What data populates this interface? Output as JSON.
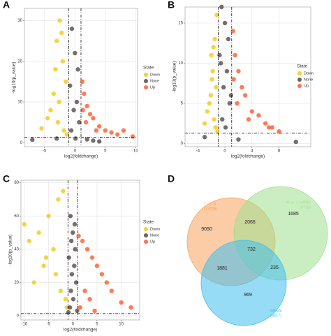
{
  "chart_data": [
    {
      "type": "scatter",
      "panel": "A",
      "xlabel": "log2(foldchange)",
      "ylabel": "-log10(p_value)",
      "legend_title": "State",
      "grid": true,
      "thresholds": {
        "x": [
          -1,
          1
        ],
        "y": 1.3
      },
      "xlim": [
        -8.3,
        10.3
      ],
      "ylim": [
        -1,
        33
      ],
      "xticks": [
        -5,
        0,
        5,
        10
      ],
      "yticks": [
        0,
        10,
        20,
        30
      ],
      "series": [
        {
          "name": "Down",
          "color": "#f5c400",
          "x": [
            -2.5,
            -3,
            -2,
            -1.5,
            -3.5,
            -4,
            -2.8,
            -1.8,
            -2.2,
            -3.2,
            -4.5,
            -1.3,
            -2.6,
            -5.5
          ],
          "y": [
            30,
            25,
            20,
            15,
            12,
            8,
            5,
            3,
            27,
            18,
            6,
            2,
            10,
            3.5
          ]
        },
        {
          "name": "None",
          "color": "#4a3d3d",
          "x": [
            -0.5,
            0,
            0.5,
            -0.8,
            0.3,
            -0.2,
            0.7,
            -0.6,
            0.1,
            2,
            3,
            -3,
            4,
            -7
          ],
          "y": [
            28,
            22,
            18,
            14,
            10,
            8,
            5,
            3,
            1,
            0.8,
            0.5,
            1,
            0.3,
            0.7
          ]
        },
        {
          "name": "Up",
          "color": "#ff4f1f",
          "x": [
            1.2,
            1.5,
            2,
            2.5,
            3,
            4,
            5,
            6,
            7,
            8,
            9.5,
            1.8,
            3.5,
            1.3
          ],
          "y": [
            15,
            12,
            9,
            7,
            6,
            4,
            3,
            2.5,
            2,
            3,
            1.5,
            5,
            3,
            8
          ]
        }
      ]
    },
    {
      "type": "scatter",
      "panel": "B",
      "xlabel": "log2(foldchange)",
      "ylabel": "-log10(p_value)",
      "legend_title": "State",
      "grid": true,
      "thresholds": {
        "x": [
          -1,
          1
        ],
        "y": 1.3
      },
      "xlim": [
        -5.9,
        12.7
      ],
      "ylim": [
        -0.4,
        17
      ],
      "xticks": [
        -4,
        0,
        4,
        8
      ],
      "yticks": [
        0,
        5,
        10,
        15
      ],
      "series": [
        {
          "name": "Down",
          "color": "#f5c400",
          "x": [
            -1.2,
            -1.5,
            -2,
            -1.8,
            -1.3,
            -2.3,
            -1.6,
            -1.4,
            -2.6,
            -1.9,
            -1.1,
            -2.1,
            -1.7,
            -3
          ],
          "y": [
            16,
            13,
            11,
            9,
            7,
            5,
            3,
            2,
            4,
            8,
            1.5,
            6,
            12,
            2.5
          ]
        },
        {
          "name": "None",
          "color": "#4a3d3d",
          "x": [
            -0.5,
            0,
            0.5,
            -0.8,
            0.3,
            -0.2,
            0.7,
            -0.4,
            0.1,
            -0.6,
            0.9,
            2,
            -3,
            10.5
          ],
          "y": [
            17,
            15,
            13,
            11,
            9,
            7,
            5,
            3,
            2,
            10,
            6,
            0.5,
            0.8,
            0.2
          ]
        },
        {
          "name": "Up",
          "color": "#ff4f1f",
          "x": [
            1.2,
            1.5,
            2,
            2.5,
            3,
            4,
            5,
            6,
            7,
            1.8,
            3.5,
            1.3,
            8,
            6.5
          ],
          "y": [
            14,
            11,
            9,
            7,
            6,
            4,
            3.5,
            2.5,
            2,
            5,
            3,
            8,
            1.5,
            2
          ]
        }
      ]
    },
    {
      "type": "scatter",
      "panel": "C",
      "xlabel": "log2(foldchange)",
      "ylabel": "-log10(p_value)",
      "legend_title": "State",
      "grid": true,
      "thresholds": {
        "x": [
          -1,
          1
        ],
        "y": 1.3
      },
      "xlim": [
        -10.7,
        13.8
      ],
      "ylim": [
        -2.5,
        81.5
      ],
      "xticks": [
        -10,
        -5,
        0,
        5,
        10
      ],
      "yticks": [
        0,
        20,
        40,
        60,
        80
      ],
      "series": [
        {
          "name": "Down",
          "color": "#f5c400",
          "x": [
            -2,
            -3,
            -5,
            -7,
            -9,
            -4,
            -6,
            -8,
            -2.5,
            -1.5,
            -3.5,
            -5.5,
            -1.2,
            -10
          ],
          "y": [
            75,
            70,
            60,
            50,
            45,
            40,
            30,
            20,
            15,
            10,
            25,
            35,
            5,
            55
          ]
        },
        {
          "name": "None",
          "color": "#4a3d3d",
          "x": [
            -0.5,
            0,
            0.5,
            -0.8,
            0.3,
            -0.2,
            0.7,
            -0.4,
            0.1,
            -0.6,
            0.9,
            -0.3,
            0.4,
            -0.9
          ],
          "y": [
            60,
            50,
            40,
            35,
            30,
            25,
            20,
            15,
            10,
            5,
            3,
            45,
            55,
            2
          ]
        },
        {
          "name": "Up",
          "color": "#ff4f1f",
          "x": [
            1.2,
            2,
            3,
            4,
            5,
            6,
            7,
            2.5,
            3.5,
            1.5,
            8,
            10,
            12,
            4.5
          ],
          "y": [
            48,
            45,
            40,
            35,
            30,
            25,
            20,
            15,
            10,
            5,
            15,
            8,
            5,
            3
          ]
        }
      ]
    },
    {
      "type": "venn",
      "panel": "D",
      "sets": [
        {
          "name": "T vs. N",
          "count_label": "(13729)",
          "color": "#f7a35c"
        },
        {
          "name": "N vs. L mRNA",
          "count_label": "(4718)",
          "color": "#9ee08f"
        },
        {
          "name": "mRNAi",
          "count_label": "(3817)",
          "color": "#3fbfef"
        }
      ],
      "regions": [
        9050,
        2066,
        1685,
        732,
        1881,
        235,
        969
      ]
    }
  ]
}
